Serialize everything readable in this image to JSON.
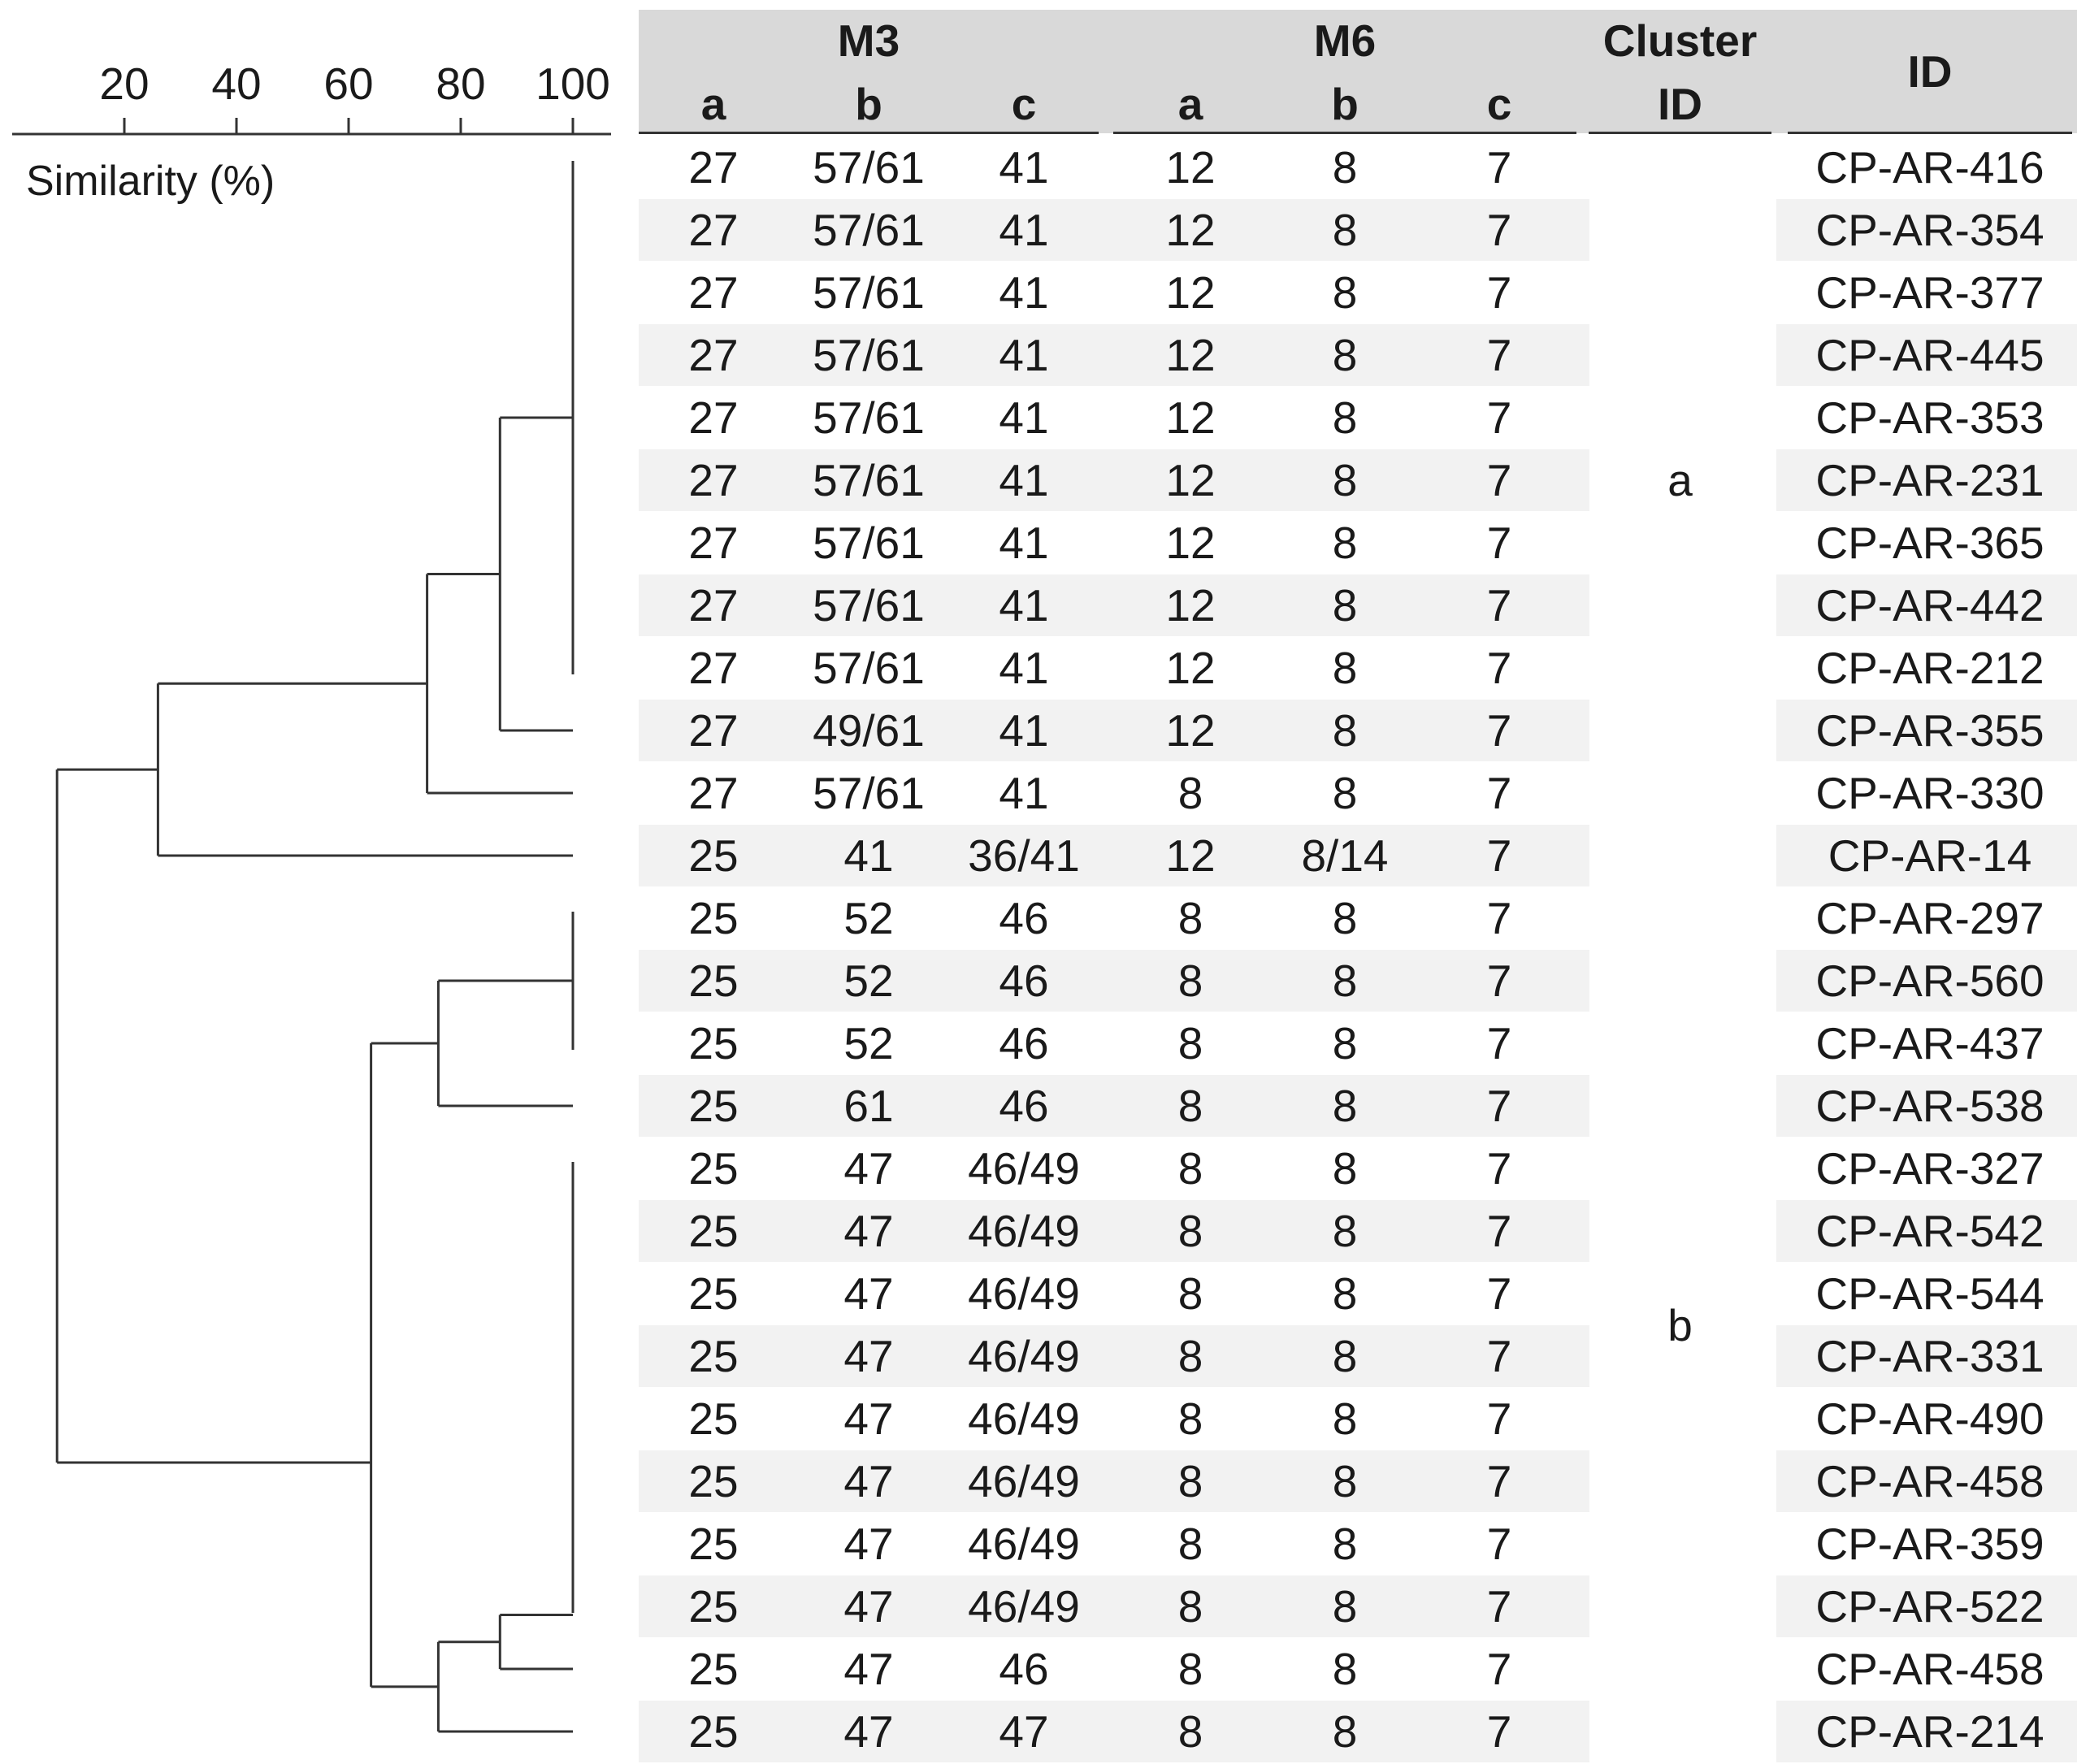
{
  "dendrogram": {
    "axis_title": "Similarity (%)",
    "ticks": [
      20,
      40,
      60,
      80,
      100
    ],
    "axis_range": [
      0,
      100
    ],
    "merges": [
      {
        "leaves": [
          0,
          8
        ],
        "similarity": 100
      },
      {
        "leaves": [
          9
        ],
        "with": "0-8",
        "similarity": 87
      },
      {
        "leaves": [
          10
        ],
        "with": "0-9",
        "similarity": 74
      },
      {
        "leaves": [
          11
        ],
        "with": "0-10",
        "similarity": 26
      },
      {
        "leaves": [
          12,
          14
        ],
        "similarity": 100
      },
      {
        "leaves": [
          15
        ],
        "with": "12-14",
        "similarity": 76
      },
      {
        "leaves": [
          16,
          23
        ],
        "similarity": 100
      },
      {
        "leaves": [
          24
        ],
        "with": "16-23",
        "similarity": 87
      },
      {
        "leaves": [
          25
        ],
        "with": "16-24",
        "similarity": 76
      },
      {
        "leaves": [],
        "with": "12-15 + 16-25",
        "similarity": 64
      },
      {
        "leaves": [],
        "with": "0-11 + 12-25",
        "similarity": 8
      }
    ]
  },
  "table": {
    "groups": {
      "m3": "M3",
      "m6": "M6",
      "cluster": "Cluster",
      "cluster2": "ID",
      "id": "ID"
    },
    "subheaders": {
      "a": "a",
      "b": "b",
      "c": "c"
    },
    "clusters": [
      {
        "label": "a",
        "row_center": 5
      },
      {
        "label": "b",
        "row_center": 18.5
      }
    ],
    "rows": [
      {
        "m3a": "27",
        "m3b": "57/61",
        "m3c": "41",
        "m6a": "12",
        "m6b": "8",
        "m6c": "7",
        "id": "CP-AR-416"
      },
      {
        "m3a": "27",
        "m3b": "57/61",
        "m3c": "41",
        "m6a": "12",
        "m6b": "8",
        "m6c": "7",
        "id": "CP-AR-354"
      },
      {
        "m3a": "27",
        "m3b": "57/61",
        "m3c": "41",
        "m6a": "12",
        "m6b": "8",
        "m6c": "7",
        "id": "CP-AR-377"
      },
      {
        "m3a": "27",
        "m3b": "57/61",
        "m3c": "41",
        "m6a": "12",
        "m6b": "8",
        "m6c": "7",
        "id": "CP-AR-445"
      },
      {
        "m3a": "27",
        "m3b": "57/61",
        "m3c": "41",
        "m6a": "12",
        "m6b": "8",
        "m6c": "7",
        "id": "CP-AR-353"
      },
      {
        "m3a": "27",
        "m3b": "57/61",
        "m3c": "41",
        "m6a": "12",
        "m6b": "8",
        "m6c": "7",
        "id": "CP-AR-231"
      },
      {
        "m3a": "27",
        "m3b": "57/61",
        "m3c": "41",
        "m6a": "12",
        "m6b": "8",
        "m6c": "7",
        "id": "CP-AR-365"
      },
      {
        "m3a": "27",
        "m3b": "57/61",
        "m3c": "41",
        "m6a": "12",
        "m6b": "8",
        "m6c": "7",
        "id": "CP-AR-442"
      },
      {
        "m3a": "27",
        "m3b": "57/61",
        "m3c": "41",
        "m6a": "12",
        "m6b": "8",
        "m6c": "7",
        "id": "CP-AR-212"
      },
      {
        "m3a": "27",
        "m3b": "49/61",
        "m3c": "41",
        "m6a": "12",
        "m6b": "8",
        "m6c": "7",
        "id": "CP-AR-355"
      },
      {
        "m3a": "27",
        "m3b": "57/61",
        "m3c": "41",
        "m6a": "8",
        "m6b": "8",
        "m6c": "7",
        "id": "CP-AR-330"
      },
      {
        "m3a": "25",
        "m3b": "41",
        "m3c": "36/41",
        "m6a": "12",
        "m6b": "8/14",
        "m6c": "7",
        "id": "CP-AR-14"
      },
      {
        "m3a": "25",
        "m3b": "52",
        "m3c": "46",
        "m6a": "8",
        "m6b": "8",
        "m6c": "7",
        "id": "CP-AR-297"
      },
      {
        "m3a": "25",
        "m3b": "52",
        "m3c": "46",
        "m6a": "8",
        "m6b": "8",
        "m6c": "7",
        "id": "CP-AR-560"
      },
      {
        "m3a": "25",
        "m3b": "52",
        "m3c": "46",
        "m6a": "8",
        "m6b": "8",
        "m6c": "7",
        "id": "CP-AR-437"
      },
      {
        "m3a": "25",
        "m3b": "61",
        "m3c": "46",
        "m6a": "8",
        "m6b": "8",
        "m6c": "7",
        "id": "CP-AR-538"
      },
      {
        "m3a": "25",
        "m3b": "47",
        "m3c": "46/49",
        "m6a": "8",
        "m6b": "8",
        "m6c": "7",
        "id": "CP-AR-327"
      },
      {
        "m3a": "25",
        "m3b": "47",
        "m3c": "46/49",
        "m6a": "8",
        "m6b": "8",
        "m6c": "7",
        "id": "CP-AR-542"
      },
      {
        "m3a": "25",
        "m3b": "47",
        "m3c": "46/49",
        "m6a": "8",
        "m6b": "8",
        "m6c": "7",
        "id": "CP-AR-544"
      },
      {
        "m3a": "25",
        "m3b": "47",
        "m3c": "46/49",
        "m6a": "8",
        "m6b": "8",
        "m6c": "7",
        "id": "CP-AR-331"
      },
      {
        "m3a": "25",
        "m3b": "47",
        "m3c": "46/49",
        "m6a": "8",
        "m6b": "8",
        "m6c": "7",
        "id": "CP-AR-490"
      },
      {
        "m3a": "25",
        "m3b": "47",
        "m3c": "46/49",
        "m6a": "8",
        "m6b": "8",
        "m6c": "7",
        "id": "CP-AR-458"
      },
      {
        "m3a": "25",
        "m3b": "47",
        "m3c": "46/49",
        "m6a": "8",
        "m6b": "8",
        "m6c": "7",
        "id": "CP-AR-359"
      },
      {
        "m3a": "25",
        "m3b": "47",
        "m3c": "46/49",
        "m6a": "8",
        "m6b": "8",
        "m6c": "7",
        "id": "CP-AR-522"
      },
      {
        "m3a": "25",
        "m3b": "47",
        "m3c": "46",
        "m6a": "8",
        "m6b": "8",
        "m6c": "7",
        "id": "CP-AR-458"
      },
      {
        "m3a": "25",
        "m3b": "47",
        "m3c": "47",
        "m6a": "8",
        "m6b": "8",
        "m6c": "7",
        "id": "CP-AR-214"
      }
    ]
  },
  "colors": {
    "header_bg": "#d9d9d9",
    "stripe_bg": "#f2f2f2",
    "line": "#333333",
    "text": "#1a1a1a"
  }
}
